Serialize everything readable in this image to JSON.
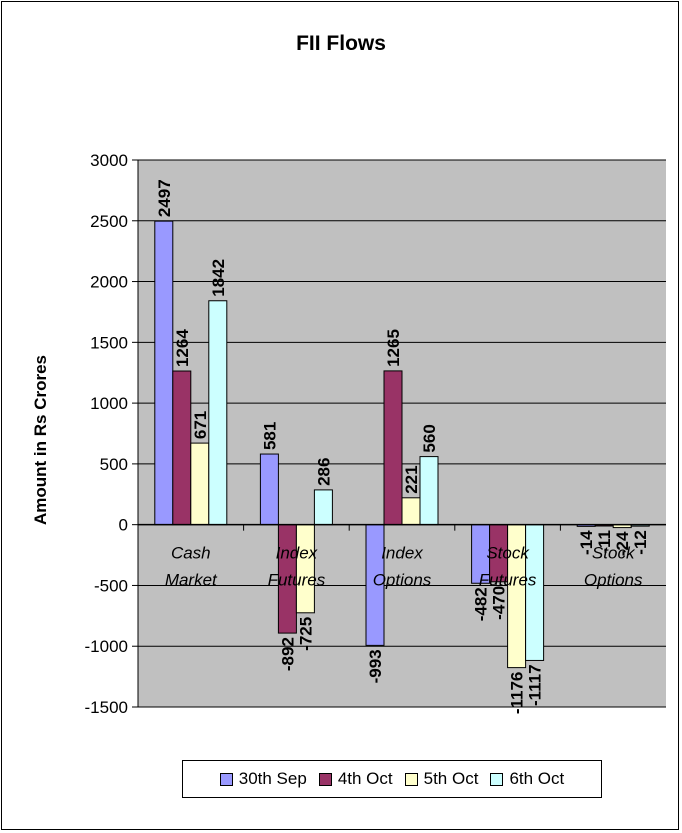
{
  "chart_data": {
    "type": "bar",
    "title": "FII Flows",
    "ylabel": "Amount in Rs Crores",
    "xlabel": "",
    "categories": [
      [
        "Cash",
        "Market"
      ],
      [
        "Index",
        "Futures"
      ],
      [
        "Index",
        "Options"
      ],
      [
        "Stock",
        "Futures"
      ],
      [
        "Stock",
        "Options"
      ]
    ],
    "ylim": [
      -1500,
      3000
    ],
    "yticks": [
      3000,
      2500,
      2000,
      1500,
      1000,
      500,
      0,
      -500,
      -1000,
      -1500
    ],
    "grid": true,
    "legend_position": "bottom",
    "series": [
      {
        "name": "30th Sep",
        "color": "#9999ff",
        "values": [
          2497,
          581,
          -993,
          -482,
          -14
        ]
      },
      {
        "name": "4th Oct",
        "color": "#993366",
        "values": [
          1264,
          -892,
          1265,
          -470,
          -11
        ]
      },
      {
        "name": "5th Oct",
        "color": "#ffffcc",
        "values": [
          671,
          -725,
          221,
          -1176,
          -24
        ]
      },
      {
        "name": "6th Oct",
        "color": "#ccffff",
        "values": [
          1842,
          286,
          560,
          -1117,
          -12
        ]
      }
    ],
    "plot_background": "#c0c0c0"
  }
}
